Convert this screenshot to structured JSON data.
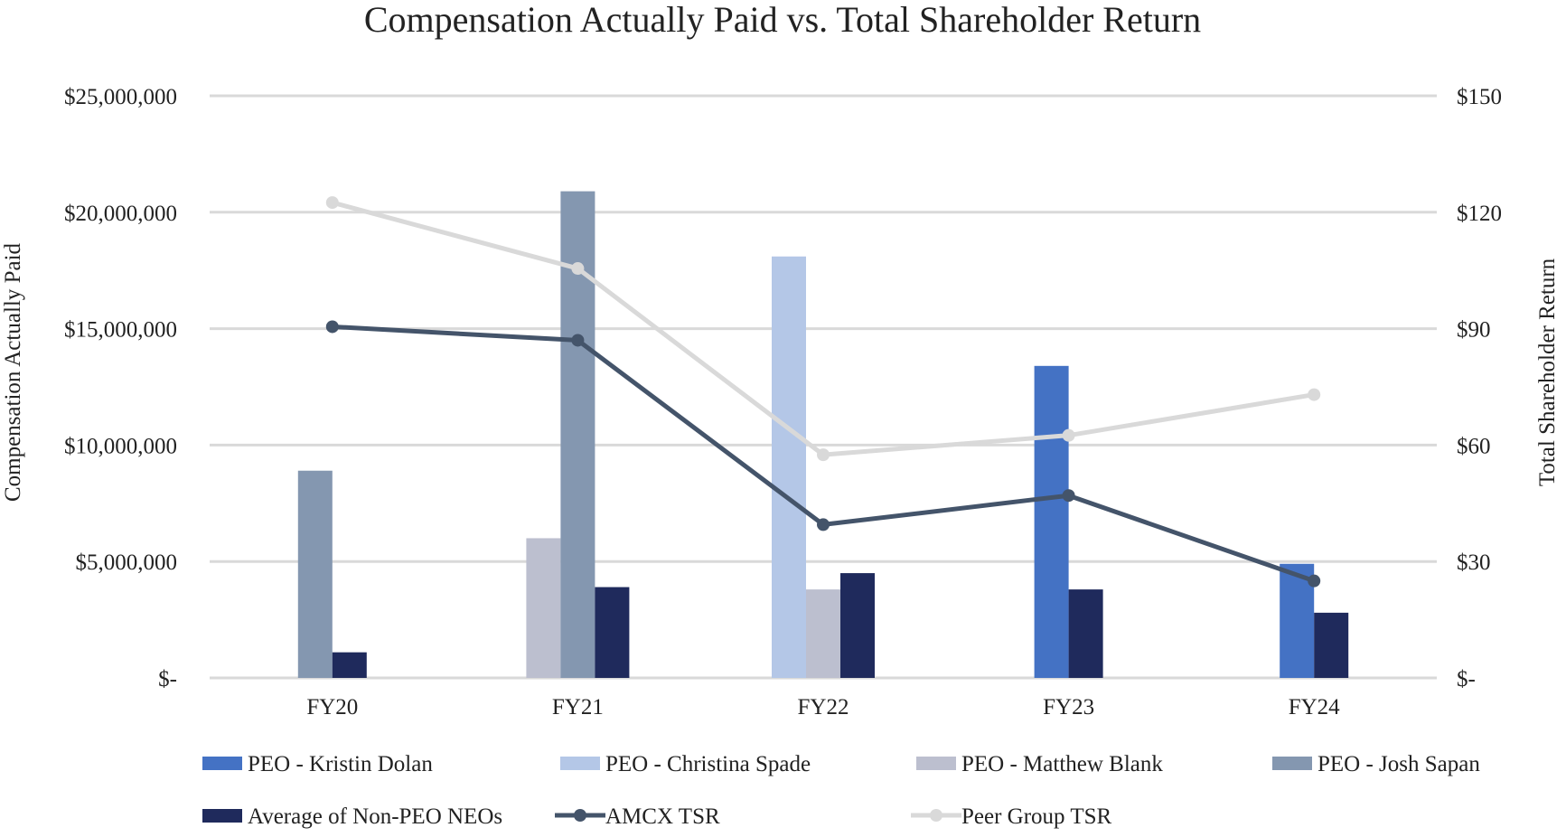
{
  "chart_data": {
    "type": "bar",
    "title": "Compensation Actually Paid vs. Total Shareholder Return",
    "ylabel": "Compensation Actually Paid",
    "y2label": "Total Shareholder Return",
    "categories": [
      "FY20",
      "FY21",
      "FY22",
      "FY23",
      "FY24"
    ],
    "ylim": [
      0,
      25000000
    ],
    "y2lim": [
      0,
      150
    ],
    "yticks": [
      {
        "value": 0,
        "label": "$-"
      },
      {
        "value": 5000000,
        "label": "$5,000,000"
      },
      {
        "value": 10000000,
        "label": "$10,000,000"
      },
      {
        "value": 15000000,
        "label": "$15,000,000"
      },
      {
        "value": 20000000,
        "label": "$20,000,000"
      },
      {
        "value": 25000000,
        "label": "$25,000,000"
      }
    ],
    "y2ticks": [
      {
        "value": 0,
        "label": "$-"
      },
      {
        "value": 30,
        "label": "$30"
      },
      {
        "value": 60,
        "label": "$60"
      },
      {
        "value": 90,
        "label": "$90"
      },
      {
        "value": 120,
        "label": "$120"
      },
      {
        "value": 150,
        "label": "$150"
      }
    ],
    "bar_series": [
      {
        "name": "PEO - Kristin Dolan",
        "color": "#4472C4",
        "values": [
          null,
          null,
          null,
          13400000,
          4900000
        ]
      },
      {
        "name": "PEO - Christina Spade",
        "color": "#B4C7E7",
        "values": [
          null,
          null,
          18100000,
          null,
          null
        ]
      },
      {
        "name": "PEO - Matthew Blank",
        "color": "#BCBFCF",
        "values": [
          null,
          6000000,
          3800000,
          null,
          null
        ]
      },
      {
        "name": "PEO - Josh Sapan",
        "color": "#8497B0",
        "values": [
          8900000,
          20900000,
          null,
          null,
          null
        ]
      },
      {
        "name": "Average of Non-PEO NEOs",
        "color": "#1F2A5C",
        "values": [
          1100000,
          3900000,
          4500000,
          3800000,
          2800000
        ]
      }
    ],
    "line_series": [
      {
        "name": "AMCX TSR",
        "color": "#44546A",
        "axis": "right",
        "values": [
          90.5,
          87,
          39.5,
          47,
          25
        ]
      },
      {
        "name": "Peer Group TSR",
        "color": "#D9D9D9",
        "axis": "right",
        "values": [
          122.5,
          105.5,
          57.5,
          62.5,
          73
        ]
      }
    ],
    "legend": [
      {
        "name": "PEO - Kristin Dolan",
        "kind": "bar",
        "color": "#4472C4"
      },
      {
        "name": "PEO - Christina Spade",
        "kind": "bar",
        "color": "#B4C7E7"
      },
      {
        "name": "PEO - Matthew Blank",
        "kind": "bar",
        "color": "#BCBFCF"
      },
      {
        "name": "PEO - Josh Sapan",
        "kind": "bar",
        "color": "#8497B0"
      },
      {
        "name": "Average of Non-PEO NEOs",
        "kind": "bar",
        "color": "#1F2A5C"
      },
      {
        "name": "AMCX TSR",
        "kind": "line",
        "color": "#44546A"
      },
      {
        "name": "Peer Group TSR",
        "kind": "line",
        "color": "#D9D9D9"
      }
    ],
    "grid": true,
    "legend_position": "bottom"
  }
}
